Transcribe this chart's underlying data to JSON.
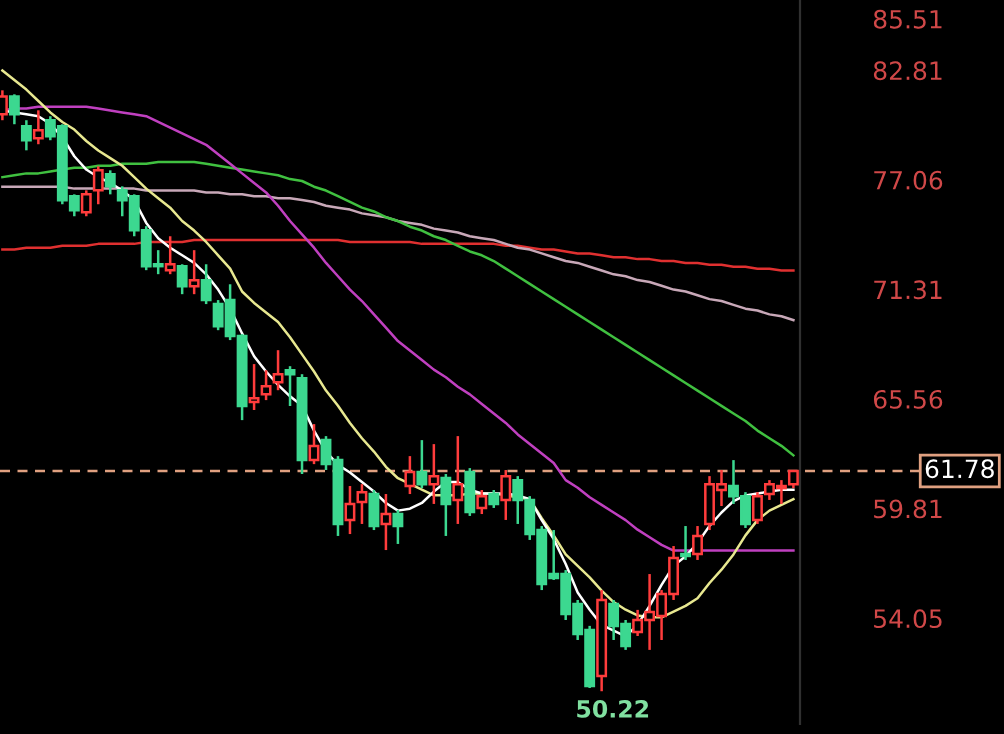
{
  "chart_data": {
    "type": "candlestick",
    "categories": [
      null,
      null,
      null,
      null,
      null,
      null,
      null,
      null,
      null,
      null,
      null,
      null,
      null,
      null,
      null,
      null,
      null,
      null,
      null,
      null,
      null,
      null,
      null,
      null,
      null,
      null,
      null,
      null,
      null,
      null,
      null,
      null,
      null,
      null,
      null,
      null,
      null,
      null,
      null,
      null,
      null,
      null,
      null,
      null,
      null,
      null,
      null,
      null,
      null,
      null,
      null,
      null,
      null,
      null,
      null,
      null,
      null,
      null,
      null,
      null,
      null,
      null,
      null,
      null,
      null,
      null,
      null
    ],
    "ohlc": [
      [
        80.5,
        81.76,
        80.19,
        81.44
      ],
      [
        81.44,
        81.55,
        79.98,
        80.5
      ],
      [
        79.87,
        80.19,
        78.61,
        79.14
      ],
      [
        79.24,
        80.71,
        78.93,
        79.66
      ],
      [
        80.19,
        80.4,
        79.14,
        79.35
      ],
      [
        79.87,
        79.98,
        75.78,
        75.99
      ],
      [
        76.2,
        76.3,
        75.15,
        75.47
      ],
      [
        75.36,
        76.51,
        75.15,
        76.3
      ],
      [
        76.51,
        77.77,
        75.78,
        77.56
      ],
      [
        77.35,
        77.56,
        76.3,
        76.72
      ],
      [
        76.51,
        76.72,
        75.15,
        75.99
      ],
      [
        76.2,
        76.3,
        74.1,
        74.42
      ],
      [
        74.42,
        74.63,
        72.32,
        72.53
      ],
      [
        72.63,
        73.37,
        72.11,
        72.53
      ],
      [
        72.32,
        74.1,
        72.11,
        72.63
      ],
      [
        72.53,
        72.63,
        71.06,
        71.48
      ],
      [
        71.48,
        73.37,
        71.06,
        71.79
      ],
      [
        71.79,
        72.63,
        70.54,
        70.75
      ],
      [
        70.54,
        70.75,
        69.17,
        69.38
      ],
      [
        70.75,
        71.58,
        68.65,
        68.86
      ],
      [
        68.86,
        68.96,
        64.45,
        65.19
      ],
      [
        65.4,
        67.39,
        64.98,
        65.6
      ],
      [
        65.81,
        67.07,
        65.5,
        66.23
      ],
      [
        66.44,
        68.12,
        66.02,
        66.86
      ],
      [
        67.07,
        67.28,
        65.19,
        66.86
      ],
      [
        66.65,
        66.86,
        61.62,
        62.35
      ],
      [
        62.35,
        64.24,
        62.14,
        63.09
      ],
      [
        63.4,
        63.61,
        61.83,
        62.14
      ],
      [
        62.35,
        62.56,
        58.37,
        59.0
      ],
      [
        59.21,
        60.99,
        58.47,
        60.05
      ],
      [
        60.15,
        61.09,
        59.0,
        60.67
      ],
      [
        60.57,
        60.78,
        58.68,
        58.89
      ],
      [
        59.0,
        60.57,
        57.63,
        59.52
      ],
      [
        59.52,
        59.73,
        57.95,
        58.89
      ],
      [
        60.99,
        62.56,
        60.57,
        61.72
      ],
      [
        61.72,
        63.4,
        60.88,
        61.09
      ],
      [
        61.09,
        63.19,
        60.05,
        61.51
      ],
      [
        61.41,
        61.62,
        58.37,
        60.05
      ],
      [
        60.26,
        63.61,
        59.0,
        61.09
      ],
      [
        61.72,
        61.93,
        59.42,
        59.63
      ],
      [
        59.84,
        60.78,
        59.52,
        60.46
      ],
      [
        60.57,
        60.78,
        59.84,
        60.05
      ],
      [
        60.26,
        61.83,
        59.21,
        61.51
      ],
      [
        61.3,
        61.51,
        59.0,
        60.26
      ],
      [
        60.26,
        60.46,
        58.16,
        58.47
      ],
      [
        58.68,
        58.89,
        55.53,
        55.85
      ],
      [
        56.37,
        58.68,
        56.06,
        56.16
      ],
      [
        56.37,
        56.58,
        53.96,
        54.28
      ],
      [
        54.8,
        55.01,
        52.91,
        53.23
      ],
      [
        53.44,
        53.65,
        50.39,
        50.5
      ],
      [
        51.02,
        55.53,
        50.22,
        55.01
      ],
      [
        54.8,
        55.01,
        52.91,
        53.65
      ],
      [
        53.75,
        53.96,
        52.39,
        52.6
      ],
      [
        53.33,
        54.49,
        53.12,
        53.96
      ],
      [
        53.96,
        56.37,
        52.39,
        54.38
      ],
      [
        54.17,
        55.53,
        52.91,
        55.32
      ],
      [
        55.32,
        57.84,
        55.01,
        57.21
      ],
      [
        57.42,
        58.89,
        57.11,
        57.32
      ],
      [
        57.42,
        58.89,
        57.11,
        58.37
      ],
      [
        59.0,
        61.51,
        58.68,
        61.09
      ],
      [
        60.78,
        61.83,
        59.94,
        61.09
      ],
      [
        60.99,
        62.35,
        60.05,
        60.46
      ],
      [
        60.46,
        60.67,
        58.79,
        59.0
      ],
      [
        59.21,
        60.67,
        59.0,
        60.46
      ],
      [
        60.57,
        61.3,
        60.26,
        61.09
      ],
      [
        60.88,
        61.3,
        60.05,
        60.99
      ],
      [
        61.09,
        61.83,
        60.88,
        61.78
      ]
    ],
    "series": [
      {
        "type": "line",
        "color": "#e03030",
        "values": [
          73.4,
          73.4,
          73.5,
          73.5,
          73.5,
          73.6,
          73.6,
          73.6,
          73.7,
          73.7,
          73.7,
          73.7,
          73.8,
          73.8,
          73.8,
          73.8,
          73.9,
          73.9,
          73.9,
          73.9,
          73.9,
          73.9,
          73.9,
          73.9,
          73.9,
          73.9,
          73.9,
          73.9,
          73.9,
          73.8,
          73.8,
          73.8,
          73.8,
          73.8,
          73.8,
          73.7,
          73.7,
          73.7,
          73.7,
          73.7,
          73.7,
          73.7,
          73.6,
          73.6,
          73.5,
          73.4,
          73.4,
          73.3,
          73.2,
          73.2,
          73.1,
          73.0,
          73.0,
          72.9,
          72.9,
          72.8,
          72.8,
          72.7,
          72.7,
          72.6,
          72.6,
          72.5,
          72.5,
          72.4,
          72.4,
          72.3,
          72.3
        ]
      },
      {
        "type": "line",
        "color": "#c8a8b8",
        "values": [
          76.7,
          76.7,
          76.7,
          76.7,
          76.7,
          76.7,
          76.6,
          76.6,
          76.6,
          76.6,
          76.6,
          76.6,
          76.5,
          76.5,
          76.5,
          76.5,
          76.5,
          76.4,
          76.4,
          76.3,
          76.3,
          76.2,
          76.2,
          76.1,
          76.1,
          76.0,
          75.9,
          75.7,
          75.6,
          75.5,
          75.3,
          75.2,
          75.1,
          74.9,
          74.8,
          74.7,
          74.5,
          74.4,
          74.3,
          74.1,
          74.0,
          73.9,
          73.7,
          73.5,
          73.4,
          73.2,
          73.0,
          72.8,
          72.7,
          72.5,
          72.3,
          72.1,
          72.0,
          71.8,
          71.7,
          71.5,
          71.3,
          71.2,
          71.0,
          70.8,
          70.7,
          70.5,
          70.3,
          70.2,
          70.0,
          69.9,
          69.7
        ]
      },
      {
        "type": "line",
        "color": "#40c040",
        "values": [
          77.2,
          77.3,
          77.4,
          77.4,
          77.5,
          77.6,
          77.7,
          77.7,
          77.8,
          77.8,
          77.9,
          77.9,
          77.9,
          78.0,
          78.0,
          78.0,
          78.0,
          77.9,
          77.8,
          77.7,
          77.6,
          77.5,
          77.4,
          77.3,
          77.1,
          77.0,
          76.7,
          76.5,
          76.2,
          75.9,
          75.6,
          75.4,
          75.1,
          74.9,
          74.6,
          74.4,
          74.1,
          73.9,
          73.6,
          73.3,
          73.1,
          72.8,
          72.4,
          72.0,
          71.6,
          71.2,
          70.8,
          70.4,
          70.0,
          69.6,
          69.2,
          68.8,
          68.4,
          68.0,
          67.6,
          67.2,
          66.8,
          66.4,
          66.0,
          65.6,
          65.2,
          64.8,
          64.4,
          63.9,
          63.5,
          63.1,
          62.6
        ]
      },
      {
        "type": "line",
        "color": "#c040c0",
        "values": [
          80.7,
          80.8,
          80.8,
          80.9,
          80.9,
          80.9,
          80.9,
          80.9,
          80.8,
          80.7,
          80.6,
          80.5,
          80.4,
          80.1,
          79.8,
          79.5,
          79.2,
          78.9,
          78.4,
          77.9,
          77.4,
          76.9,
          76.4,
          75.7,
          74.9,
          74.2,
          73.5,
          72.7,
          72.0,
          71.3,
          70.7,
          70.0,
          69.3,
          68.6,
          68.1,
          67.6,
          67.1,
          66.7,
          66.2,
          65.8,
          65.3,
          64.8,
          64.3,
          63.7,
          63.2,
          62.7,
          62.2,
          61.3,
          60.9,
          60.4,
          60.0,
          59.6,
          59.2,
          58.7,
          58.3,
          57.9,
          57.6,
          57.6,
          57.6,
          57.6,
          57.6,
          57.6,
          57.6,
          57.6,
          57.6,
          57.6,
          57.6
        ]
      },
      {
        "type": "line",
        "color": "#e8e890",
        "values": [
          82.8,
          82.3,
          81.8,
          81.2,
          80.6,
          80.1,
          79.7,
          79.1,
          78.6,
          78.2,
          77.8,
          77.2,
          76.6,
          76.1,
          75.6,
          74.9,
          74.4,
          73.8,
          73.1,
          72.4,
          71.2,
          70.6,
          70.1,
          69.6,
          68.8,
          67.9,
          67.0,
          66.0,
          65.2,
          64.3,
          63.5,
          62.8,
          62.0,
          61.4,
          61.1,
          60.8,
          60.5,
          60.5,
          60.5,
          60.6,
          60.6,
          60.6,
          60.5,
          60.4,
          60.3,
          59.3,
          58.4,
          57.4,
          56.8,
          56.2,
          55.5,
          54.9,
          54.5,
          54.2,
          54.1,
          54.1,
          54.4,
          54.7,
          55.1,
          55.9,
          56.6,
          57.4,
          58.4,
          59.2,
          59.7,
          60.0,
          60.3
        ]
      },
      {
        "type": "line",
        "color": "#ffffff",
        "values": [
          80.7,
          80.6,
          80.5,
          80.4,
          80.0,
          79.3,
          78.3,
          77.6,
          77.2,
          76.9,
          76.5,
          76.0,
          74.8,
          74.0,
          73.5,
          73.1,
          72.7,
          72.1,
          71.3,
          70.3,
          69.0,
          67.8,
          67.0,
          66.3,
          65.7,
          65.2,
          63.9,
          62.8,
          62.1,
          61.7,
          61.2,
          60.7,
          60.1,
          59.7,
          59.8,
          60.1,
          60.7,
          61.2,
          61.2,
          60.8,
          60.6,
          60.6,
          60.6,
          60.5,
          60.3,
          59.2,
          58.2,
          56.9,
          55.4,
          54.5,
          53.7,
          53.4,
          53.1,
          53.7,
          54.7,
          55.8,
          56.8,
          57.3,
          58.0,
          58.9,
          59.6,
          60.2,
          60.5,
          60.6,
          60.7,
          60.8,
          60.8
        ]
      }
    ],
    "ylim": [
      48.5,
      86.5
    ],
    "yticks": [
      85.51,
      82.81,
      77.06,
      71.31,
      65.56,
      59.81,
      54.05
    ],
    "tick_labels": "y",
    "grid": false,
    "ref_lines": [
      {
        "axis": "y",
        "value": 61.78,
        "label": "61.78",
        "color": "#e0a080",
        "line_style": "dashed"
      }
    ],
    "annotations": [
      "50.22"
    ]
  }
}
